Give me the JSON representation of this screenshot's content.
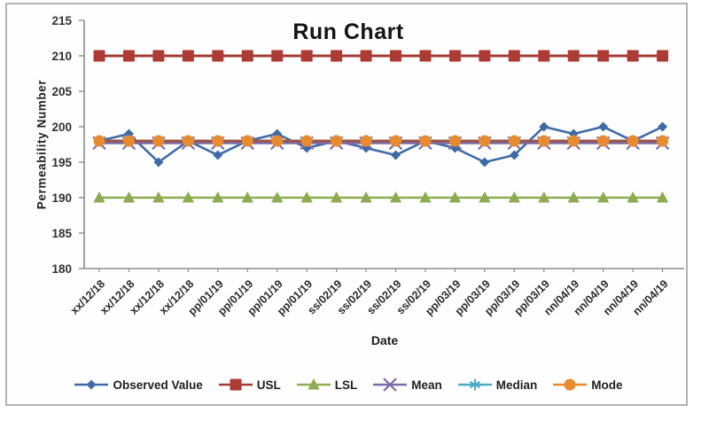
{
  "chart_data": {
    "type": "line",
    "title": "Run Chart",
    "xlabel": "Date",
    "ylabel": "Permeability Number",
    "ylim": [
      180,
      215
    ],
    "ytick_step": 5,
    "yticks": [
      180,
      185,
      190,
      195,
      200,
      205,
      210,
      215
    ],
    "grid": false,
    "legend_position": "bottom",
    "categories": [
      "xx/12/18",
      "xx/12/18",
      "xx/12/18",
      "xx/12/18",
      "pp/01/19",
      "pp/01/19",
      "pp/01/19",
      "pp/01/19",
      "ss/02/19",
      "ss/02/19",
      "ss/02/19",
      "ss/02/19",
      "pp/03/19",
      "pp/03/19",
      "pp/03/19",
      "pp/03/19",
      "nn/04/19",
      "nn/04/19",
      "nn/04/19",
      "nn/04/19"
    ],
    "series": [
      {
        "name": "Observed Value",
        "marker": "diamond",
        "color": "#3D6BA8",
        "line_color": "#3D6BA8",
        "values": [
          198,
          199,
          195,
          198,
          196,
          198,
          199,
          197,
          198,
          197,
          196,
          198,
          197,
          195,
          196,
          200,
          199,
          200,
          198,
          200
        ]
      },
      {
        "name": "USL",
        "marker": "square",
        "color": "#AE3B33",
        "line_color": "#A43A35",
        "values": [
          210,
          210,
          210,
          210,
          210,
          210,
          210,
          210,
          210,
          210,
          210,
          210,
          210,
          210,
          210,
          210,
          210,
          210,
          210,
          210
        ]
      },
      {
        "name": "LSL",
        "marker": "triangle",
        "color": "#8DAC51",
        "line_color": "#8DAC51",
        "values": [
          190,
          190,
          190,
          190,
          190,
          190,
          190,
          190,
          190,
          190,
          190,
          190,
          190,
          190,
          190,
          190,
          190,
          190,
          190,
          190
        ]
      },
      {
        "name": "Mean",
        "marker": "x",
        "color": "#7C6BA8",
        "line_color": "#7C6BA8",
        "values": [
          197.7,
          197.7,
          197.7,
          197.7,
          197.7,
          197.7,
          197.7,
          197.7,
          197.7,
          197.7,
          197.7,
          197.7,
          197.7,
          197.7,
          197.7,
          197.7,
          197.7,
          197.7,
          197.7,
          197.7
        ]
      },
      {
        "name": "Median",
        "marker": "asterisk",
        "color": "#4BACC6",
        "line_color": "#4BACC6",
        "values": [
          198,
          198,
          198,
          198,
          198,
          198,
          198,
          198,
          198,
          198,
          198,
          198,
          198,
          198,
          198,
          198,
          198,
          198,
          198,
          198
        ]
      },
      {
        "name": "Mode",
        "marker": "circle",
        "color": "#E78B2D",
        "line_color": "#98554B",
        "values": [
          198,
          198,
          198,
          198,
          198,
          198,
          198,
          198,
          198,
          198,
          198,
          198,
          198,
          198,
          198,
          198,
          198,
          198,
          198,
          198
        ]
      }
    ]
  }
}
